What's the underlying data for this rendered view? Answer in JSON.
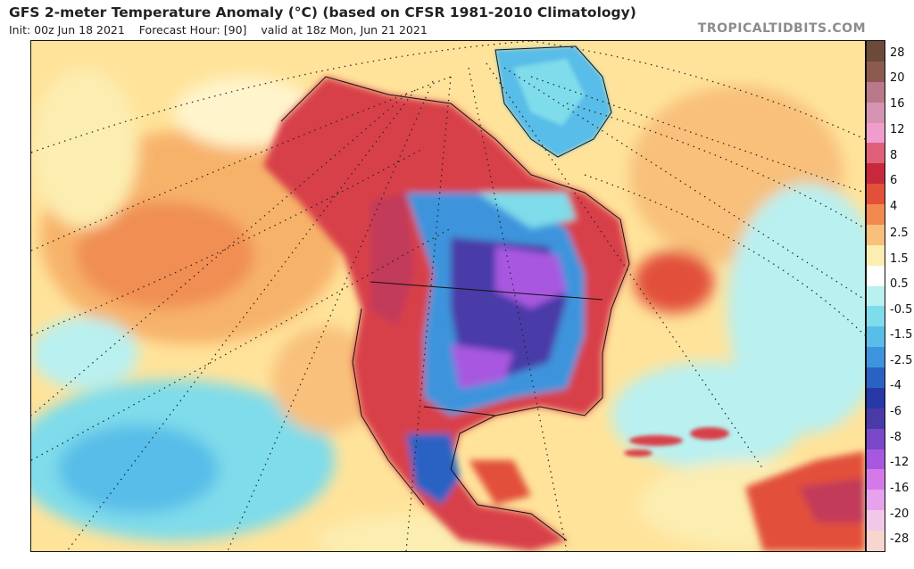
{
  "header": {
    "title": "GFS 2-meter Temperature Anomaly (°C) (based on CFSR 1981-2010 Climatology)",
    "init": "Init: 00z Jun 18 2021",
    "forecast_hour": "Forecast Hour: [90]",
    "valid": "valid at 18z Mon, Jun 21 2021",
    "brand": "TROPICALTIDBITS.COM"
  },
  "colorbar": {
    "labels": [
      "28",
      "20",
      "16",
      "12",
      "8",
      "6",
      "4",
      "2.5",
      "1.5",
      "0.5",
      "-0.5",
      "-1.5",
      "-2.5",
      "-4",
      "-6",
      "-8",
      "-12",
      "-16",
      "-20",
      "-28"
    ],
    "colors": [
      "#6b4a3c",
      "#8c5a50",
      "#b87a8a",
      "#d493b0",
      "#f09ccc",
      "#e0607a",
      "#c8283c",
      "#e2503a",
      "#f28a50",
      "#f8c07a",
      "#fcedb0",
      "#ffffff",
      "#b9f0f0",
      "#7fdcea",
      "#58bde8",
      "#3e94dc",
      "#2a62c4",
      "#2838a6",
      "#4a3aa8",
      "#7a48c8",
      "#a858e0",
      "#d47ae8",
      "#e6a2ec",
      "#f2c8e8",
      "#f8d6d0"
    ]
  }
}
